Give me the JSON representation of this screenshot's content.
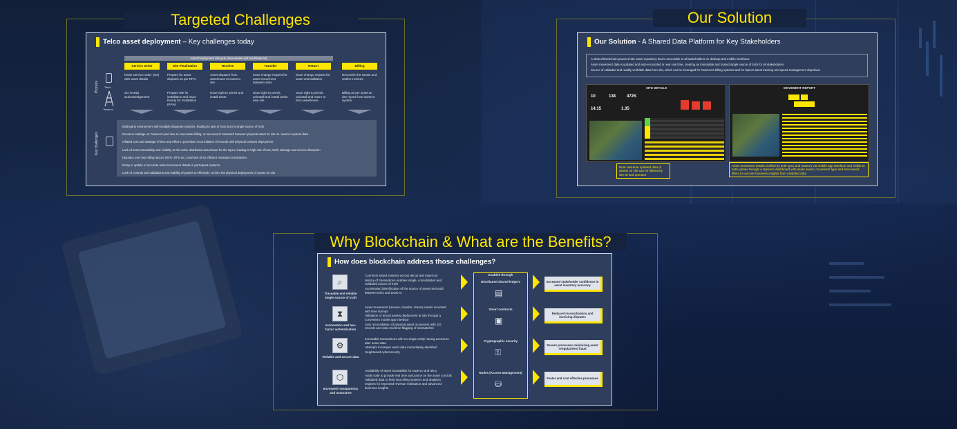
{
  "panels": {
    "targeted": {
      "title": "Targeted Challenges"
    },
    "solution": {
      "title": "Our Solution"
    },
    "benefits": {
      "title": "Why Blockchain & What are the Benefits?"
    }
  },
  "slide1": {
    "title_bold": "Telco asset deployment",
    "title_rest": " – Key challenges today",
    "lifecycle_label": "Asset Deployment Lifecycle (New assets and modifications)",
    "stages": [
      "Service Order",
      "Site Finalisation",
      "Receive",
      "Transfer",
      "Return",
      "Billing"
    ],
    "row1": [
      "Raise Service order (SO) with asset details",
      "Prepare for asset dispatch as per RFAI",
      "Asset dispatch from warehouse to towerco site",
      "Issue change request for asset movement between sites",
      "Issue change request for asset uninstallation",
      "Reconcile the assets and settles invoices"
    ],
    "row2": [
      "SO receipt acknowledgement",
      "Prepare site for installation and issue Ready for Installation (RFAI)",
      "Issue right to permit and install asset",
      "Issue right to permit, uninstall and install at the new site",
      "Issue right to permit, uninstall and return to telco warehouse",
      "Billing as per asset at site report from towerco system"
    ],
    "process_label": "Process",
    "telco_label": "Telco",
    "towerco_label": "Towerco",
    "kc_label": "Key challenges",
    "challenges": [
      "Multi-party environment with multiple disparate systems, leading to lack of trust and no single source of truth",
      "Revenue leakage on Towerco's part due to inaccurate billing, on account of mismatch between physical asset on site vs. towerco system data",
      "Inflated cost and wastage of time and effort in post-facto reconciliation of records with physical network deployment",
      "Lack of asset traceability and visibility to the entire distributed asset base for the Opco, leading to high risk of loss, theft, damage and service disruption",
      "Disputes over key billing factors (RFAI, RFS etc.) and lack of an efficient resolution mechanism",
      "Delay in update of accurate asset movement details in participant systems",
      "Lack of controls and validations and inability of parties to efficiently confirm the physical deployment of assets on site"
    ]
  },
  "slide2": {
    "title_bold": "Our Solution",
    "title_rest": " - A Shared Data Platform for Key Stakeholders",
    "bullets": [
      "A shared blockchain powered site asset repository that is accessible to all stakeholders on desktop and mobile interfaces",
      "Asset movement data is updated and auto-reconciled in near real time, creating an immutable and trusted single source of truth for all stakeholders",
      "Source of validated and readily verifiable data from site, which can be leveraged for Towerco's billing systems and for Opco's asset tracking and spend management objectives"
    ],
    "site_details": {
      "title": "SITE DETAILS",
      "stats": [
        "10",
        "138",
        "472K",
        "14.15",
        "1.35"
      ]
    },
    "movement_report": {
      "title": "MOVEMENT REPORT"
    },
    "caption_left": "Near real-time updated data of assets on site can be filtered by site ID and operator",
    "caption_right": "Asset movement details verified by both opco and towerco via mobile app interface and visible to both parties through a dynamic dashboard with asset owner, movement type and time-based filters to uncover business insights from validated data"
  },
  "slide3": {
    "title": "How does blockchain address those challenges?",
    "enabled_through": "Enabled through",
    "rows": [
      {
        "label": "Traceable and reliable single source of truth",
        "icon": "magnifier-icon",
        "bullets": [
          "Connects siloed systems across telcos and towercos",
          "History of transactions enables single, consolidated and validated source of truth",
          "Accelerated identification of the source of asset mismatch between telco and towerco"
        ],
        "enabler": "Distributed shared ledgers",
        "benefit": "Increased stakeholder confidence in asset inventory accuracy"
      },
      {
        "label": "Automation and two-factor authentication",
        "icon": "hourglass-icon",
        "bullets": [
          "Asset movement (receive, transfer, return) events recorded with time stamps",
          "Validation of actual assets deployment at site through a convenient mobile app interface",
          "Auto reconciliation of physical asset movement with SO records and near real time flagging of mismatches"
        ],
        "enabler": "Smart contracts",
        "benefit": "Reduced reconciliations and invoicing disputes"
      },
      {
        "label": "Reliable and secure data",
        "icon": "gears-icon",
        "bullets": [
          "Immutable transactions with no single entity having access to alter asset data",
          "Attempts to tamper asset data immediately identified",
          "Heightened cybersecurity"
        ],
        "enabler": "Cryptographic security",
        "benefit": "Secure processes minimising asset irregularities/ fraud"
      },
      {
        "label": "Increased transparency and assurance",
        "icon": "network-icon",
        "bullets": [
          "Availability of asset traceability for towerco and telco",
          "Audit node to provide real time assurance on the asset controls",
          "Validated data to feed into billing systems and analytics engines for improved revenue realisation and advanced business insights"
        ],
        "enabler": "Nodes (Access Management)",
        "benefit": "Faster and cost effective processes"
      }
    ]
  }
}
